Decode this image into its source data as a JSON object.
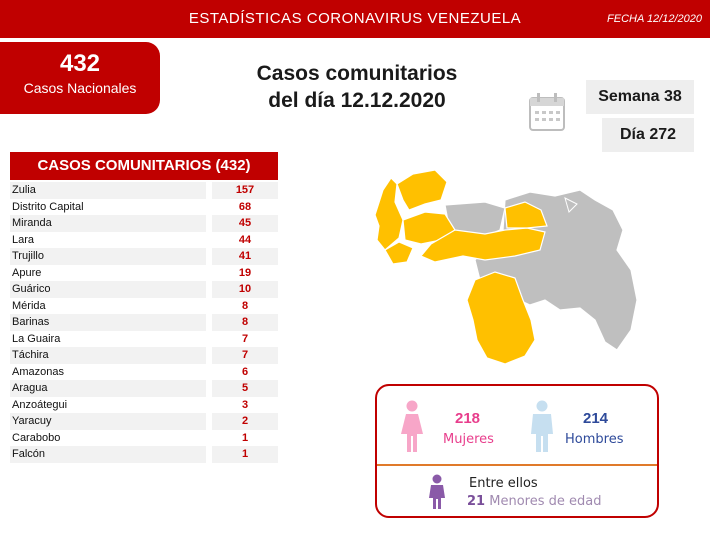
{
  "header": {
    "title": "ESTADÍSTICAS CORONAVIRUS VENEZUELA",
    "fecha": "FECHA 12/12/2020"
  },
  "nacional": {
    "count": "432",
    "label": "Casos Nacionales"
  },
  "heading": {
    "line1": "Casos comunitarios",
    "line2": "del día 12.12.2020"
  },
  "semana": "Semana 38",
  "dia": "Día 272",
  "table": {
    "title": "CASOS COMUNITARIOS (432)",
    "rows": [
      {
        "state": "Zulia",
        "value": "157"
      },
      {
        "state": "Distrito Capital",
        "value": "68"
      },
      {
        "state": "Miranda",
        "value": "45"
      },
      {
        "state": "Lara",
        "value": "44"
      },
      {
        "state": "Trujillo",
        "value": "41"
      },
      {
        "state": "Apure",
        "value": "19"
      },
      {
        "state": "Guárico",
        "value": "10"
      },
      {
        "state": "Mérida",
        "value": "8"
      },
      {
        "state": "Barinas",
        "value": "8"
      },
      {
        "state": "La Guaira",
        "value": "7"
      },
      {
        "state": "Táchira",
        "value": "7"
      },
      {
        "state": "Amazonas",
        "value": "6"
      },
      {
        "state": "Aragua",
        "value": "5"
      },
      {
        "state": "Anzoátegui",
        "value": "3"
      },
      {
        "state": "Yaracuy",
        "value": "2"
      },
      {
        "state": "Carabobo",
        "value": "1"
      },
      {
        "state": "Falcón",
        "value": "1"
      }
    ]
  },
  "gender": {
    "women_count": "218",
    "women_label": "Mujeres",
    "men_count": "214",
    "men_label": "Hombres",
    "entre": "Entre ellos",
    "minors_count": "21",
    "minors_label": "Menores de edad"
  },
  "colors": {
    "brand_red": "#c00000",
    "map_affected": "#ffc000",
    "map_other": "#bfbfbf",
    "women": "#e83e8c",
    "men": "#2e4a9a",
    "minors": "#7a4f9a"
  },
  "icons": [
    "calendar-icon",
    "woman-icon",
    "man-icon",
    "child-icon",
    "venezuela-map"
  ]
}
